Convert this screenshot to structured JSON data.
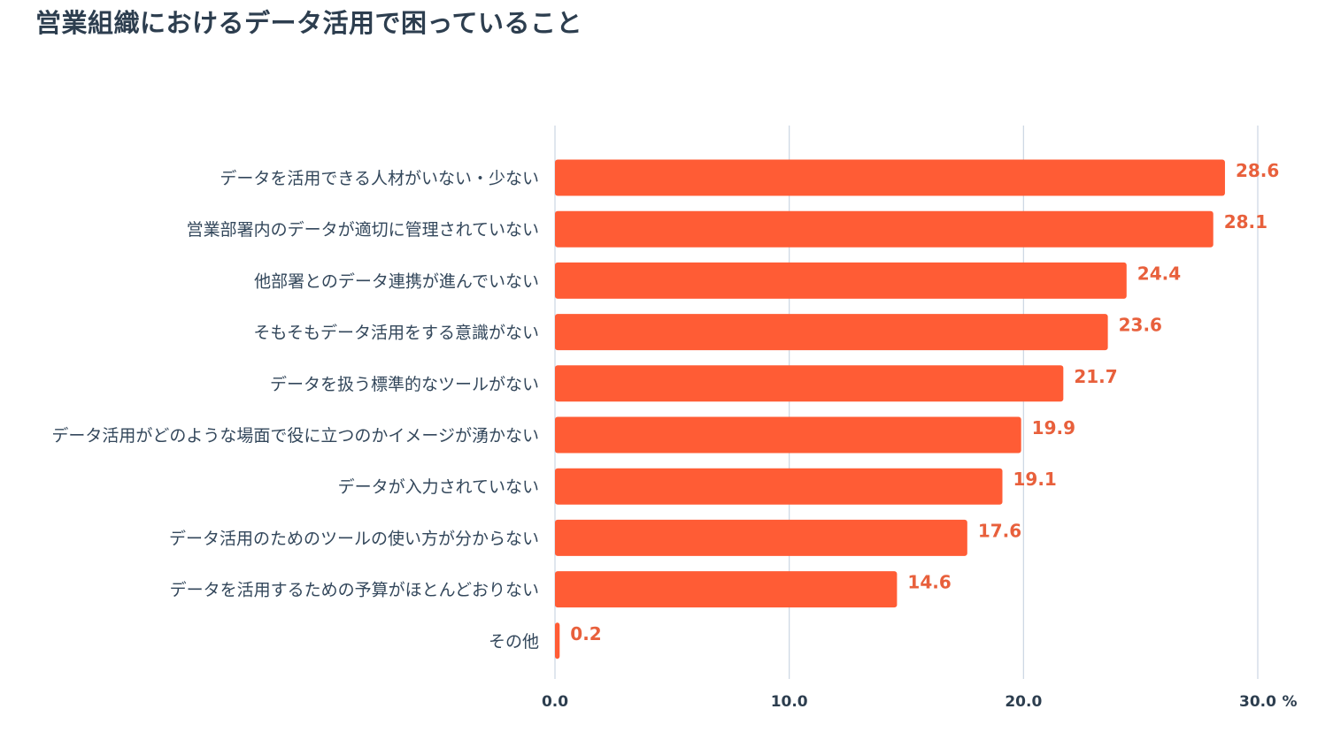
{
  "chart_data": {
    "type": "bar",
    "orientation": "horizontal",
    "title": "営業組織におけるデータ活用で困っていること",
    "categories": [
      "データを活用できる人材がいない・少ない",
      "営業部署内のデータが適切に管理されていない",
      "他部署とのデータ連携が進んでいない",
      "そもそもデータ活用をする意識がない",
      "データを扱う標準的なツールがない",
      "データ活用がどのような場面で役に立つのかイメージが湧かない",
      "データが入力されていない",
      "データ活用のためのツールの使い方が分からない",
      "データを活用するための予算がほとんどおりない",
      "その他"
    ],
    "values": [
      28.6,
      28.1,
      24.4,
      23.6,
      21.7,
      19.9,
      19.1,
      17.6,
      14.6,
      0.2
    ],
    "value_labels": [
      "28.6",
      "28.1",
      "24.4",
      "23.6",
      "21.7",
      "19.9",
      "19.1",
      "17.6",
      "14.6",
      "0.2"
    ],
    "xlim": [
      0,
      30
    ],
    "ticks": [
      0,
      10,
      20,
      30
    ],
    "tick_labels": [
      "0.0",
      "10.0",
      "20.0",
      "30.0"
    ],
    "unit": "%",
    "grid": true,
    "colors": {
      "bar": "#ff5c35",
      "value_text": "#e8603c",
      "grid": "#cbd6e2",
      "text": "#33475b",
      "title": "#2d3e4f"
    }
  }
}
